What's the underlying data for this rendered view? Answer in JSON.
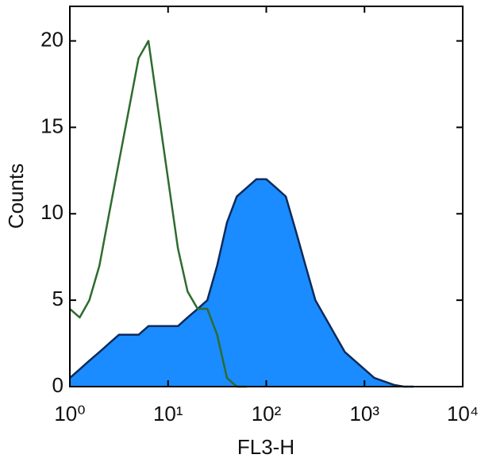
{
  "chart_data": {
    "type": "histogram-area",
    "x_label": "FL3-H",
    "y_label": "Counts",
    "xscale": "log",
    "xlim": [
      1,
      10000
    ],
    "ylim": [
      0,
      22
    ],
    "xticks": [
      {
        "value": 1,
        "label": "10⁰"
      },
      {
        "value": 10,
        "label": "10¹"
      },
      {
        "value": 100,
        "label": "10²"
      },
      {
        "value": 1000,
        "label": "10³"
      },
      {
        "value": 10000,
        "label": "10⁴"
      }
    ],
    "yticks": [
      0,
      5,
      10,
      15,
      20
    ],
    "x": [
      1,
      1.26,
      1.58,
      2,
      2.51,
      3.16,
      3.98,
      5.01,
      6.31,
      7.94,
      10,
      12.6,
      15.8,
      20,
      25.1,
      31.6,
      39.8,
      50.1,
      63.1,
      79.4,
      100,
      126,
      158,
      200,
      251,
      316,
      398,
      501,
      631,
      794,
      1000,
      1259,
      1585,
      1995,
      2512,
      3162
    ],
    "series": [
      {
        "color": "#1a8cff",
        "edge": "#0d2a5c",
        "fill": true,
        "values": [
          0.5,
          1,
          1.5,
          2,
          2.5,
          3,
          3,
          3,
          3.5,
          3.5,
          3.5,
          3.5,
          4,
          4.5,
          5,
          7,
          9.5,
          11,
          11.5,
          12,
          12,
          11.5,
          11,
          9,
          7,
          5,
          4,
          3,
          2,
          1.5,
          1,
          0.5,
          0.3,
          0.1,
          0,
          0
        ]
      },
      {
        "color": "#2e6b2e",
        "fill": false,
        "values": [
          4.5,
          4,
          5,
          7,
          10,
          13,
          16,
          19,
          20,
          16,
          12,
          8,
          5.5,
          4.5,
          4.5,
          3,
          0.5,
          0,
          0,
          null,
          null,
          null,
          null,
          null,
          null,
          null,
          null,
          null,
          null,
          null,
          null,
          null,
          null,
          null,
          null,
          null
        ]
      }
    ]
  }
}
